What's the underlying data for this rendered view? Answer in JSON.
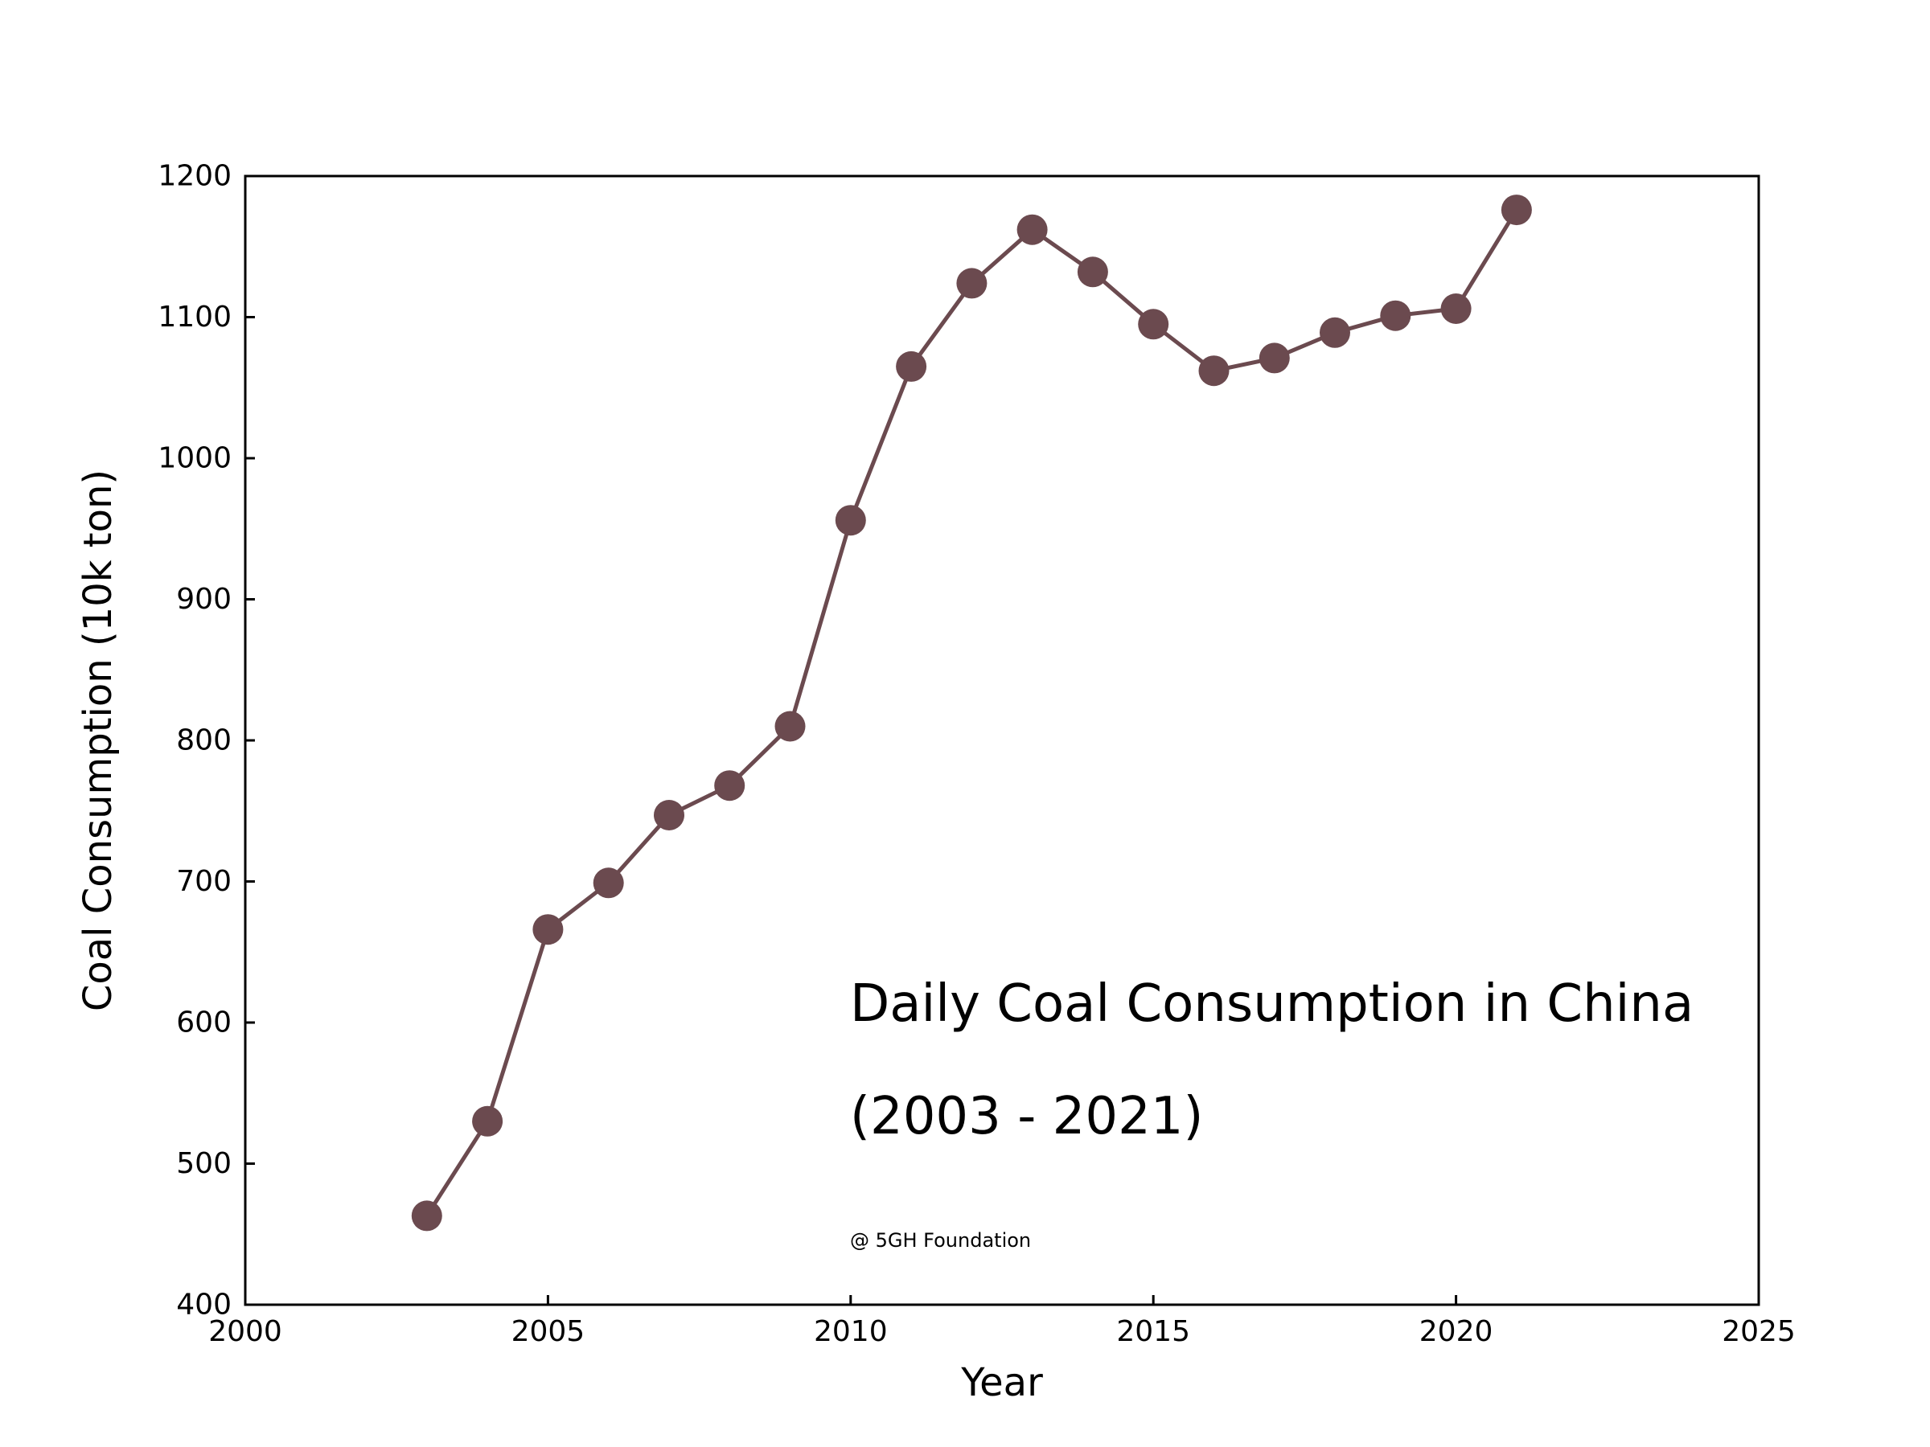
{
  "chart_data": {
    "type": "line",
    "title": "Daily Coal Consumption in China",
    "subtitle": "(2003 - 2021)",
    "credit": "@ 5GH Foundation",
    "xlabel": "Year",
    "ylabel": "Coal Consumption (10k ton)",
    "xlim": [
      2000,
      2025
    ],
    "ylim": [
      400,
      1200
    ],
    "xticks": [
      "2000",
      "2005",
      "2010",
      "2015",
      "2020",
      "2025"
    ],
    "yticks": [
      "400",
      "500",
      "600",
      "700",
      "800",
      "900",
      "1000",
      "1100",
      "1200"
    ],
    "grid": false,
    "legend": "none",
    "color": "#6b4a4f",
    "x": [
      2003,
      2004,
      2005,
      2006,
      2007,
      2008,
      2009,
      2010,
      2011,
      2012,
      2013,
      2014,
      2015,
      2016,
      2017,
      2018,
      2019,
      2020,
      2021
    ],
    "values": [
      463,
      530,
      666,
      699,
      747,
      768,
      810,
      956,
      1065,
      1124,
      1162,
      1132,
      1095,
      1062,
      1071,
      1089,
      1101,
      1106,
      1176
    ]
  }
}
